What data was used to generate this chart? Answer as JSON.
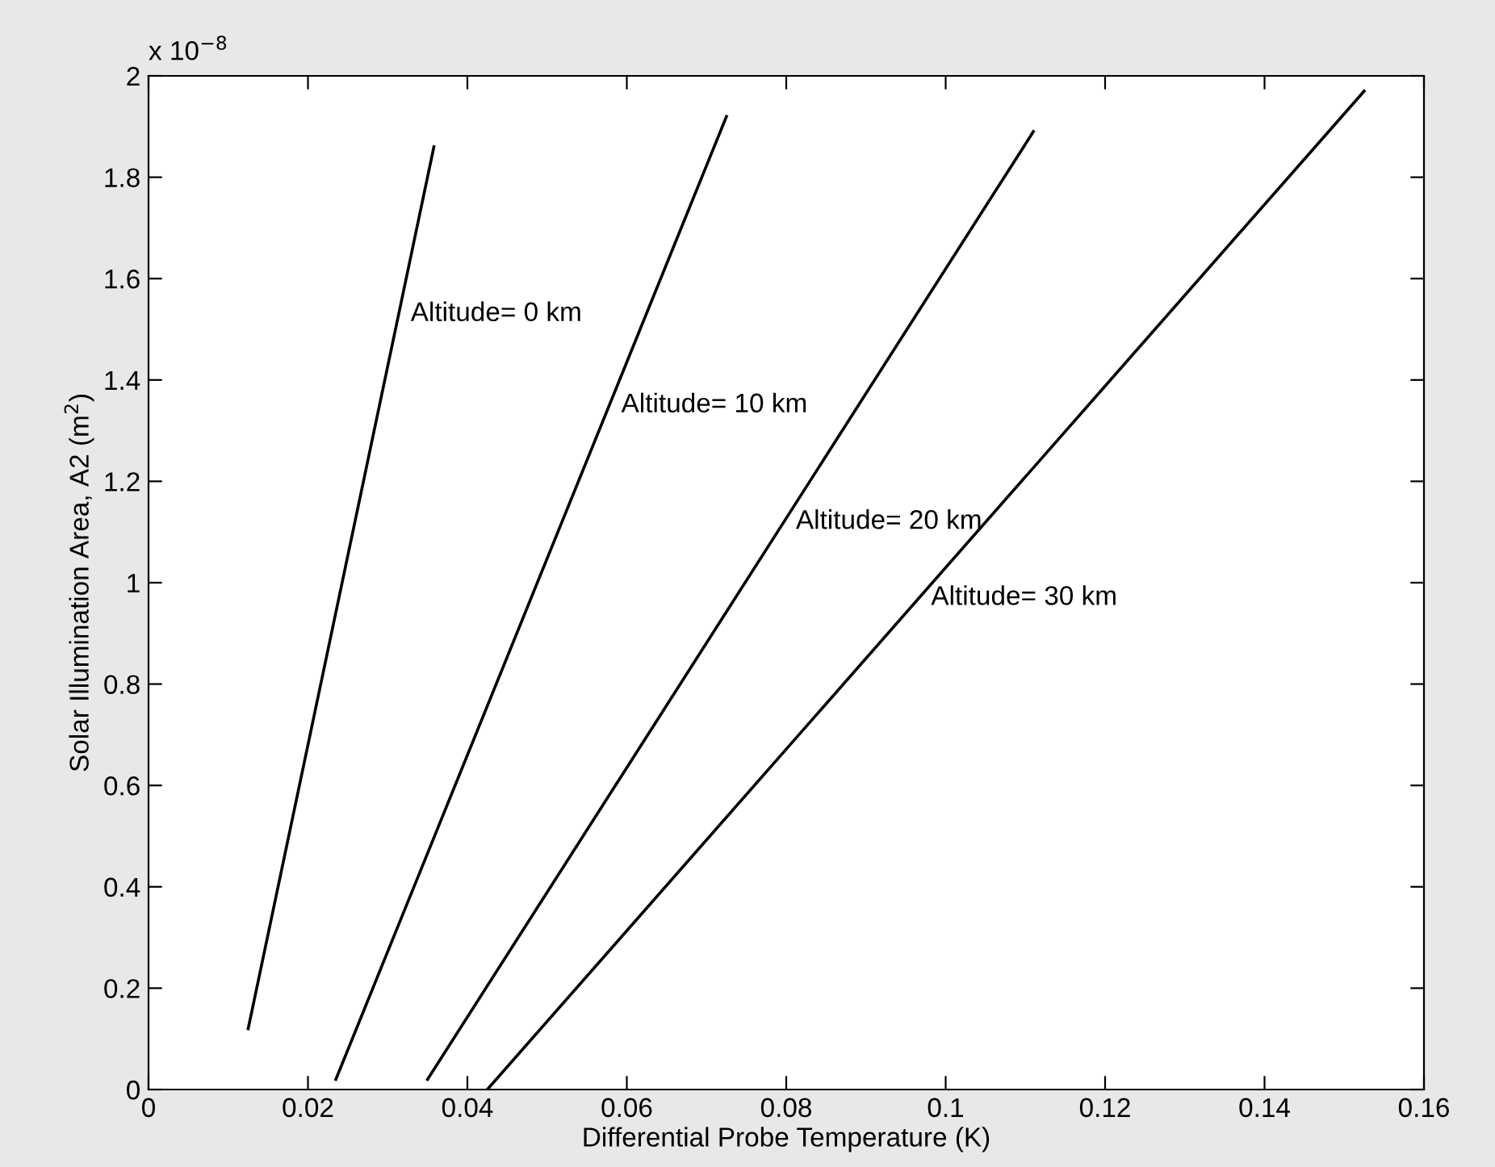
{
  "chart_data": {
    "type": "line",
    "xlabel": "Differential Probe Temperature (K)",
    "ylabel": "Solar Illumination Area, A2 (m$^{2}$)",
    "annotations": [
      "x 10$^{−8}$"
    ],
    "series": [
      {
        "name": "Altitude= 0 km",
        "color": "#000000",
        "x": [
          0.0125,
          0.0358
        ],
        "values": [
          0.12,
          1.86
        ]
      },
      {
        "name": "Altitude= 10 km",
        "color": "#000000",
        "x": [
          0.0235,
          0.0725
        ],
        "values": [
          0.02,
          1.92
        ]
      },
      {
        "name": "Altitude= 20 km",
        "color": "#000000",
        "x": [
          0.035,
          0.111
        ],
        "values": [
          0.02,
          1.89
        ]
      },
      {
        "name": "Altitude= 30 km",
        "color": "#000000",
        "x": [
          0.0425,
          0.1525
        ],
        "values": [
          0,
          1.97
        ]
      }
    ],
    "xlim": [
      0,
      0.16
    ],
    "xticks": [
      0,
      0.02,
      0.04,
      0.06,
      0.08,
      0.1,
      0.12,
      0.14,
      0.16
    ],
    "ylim": [
      0,
      2
    ],
    "yticks": [
      0,
      0.2,
      0.4,
      0.6,
      0.8,
      1,
      1.2,
      1.4,
      1.6,
      1.8,
      2
    ],
    "grid": false,
    "legend": false,
    "marker": "none",
    "line_style": "solid"
  }
}
